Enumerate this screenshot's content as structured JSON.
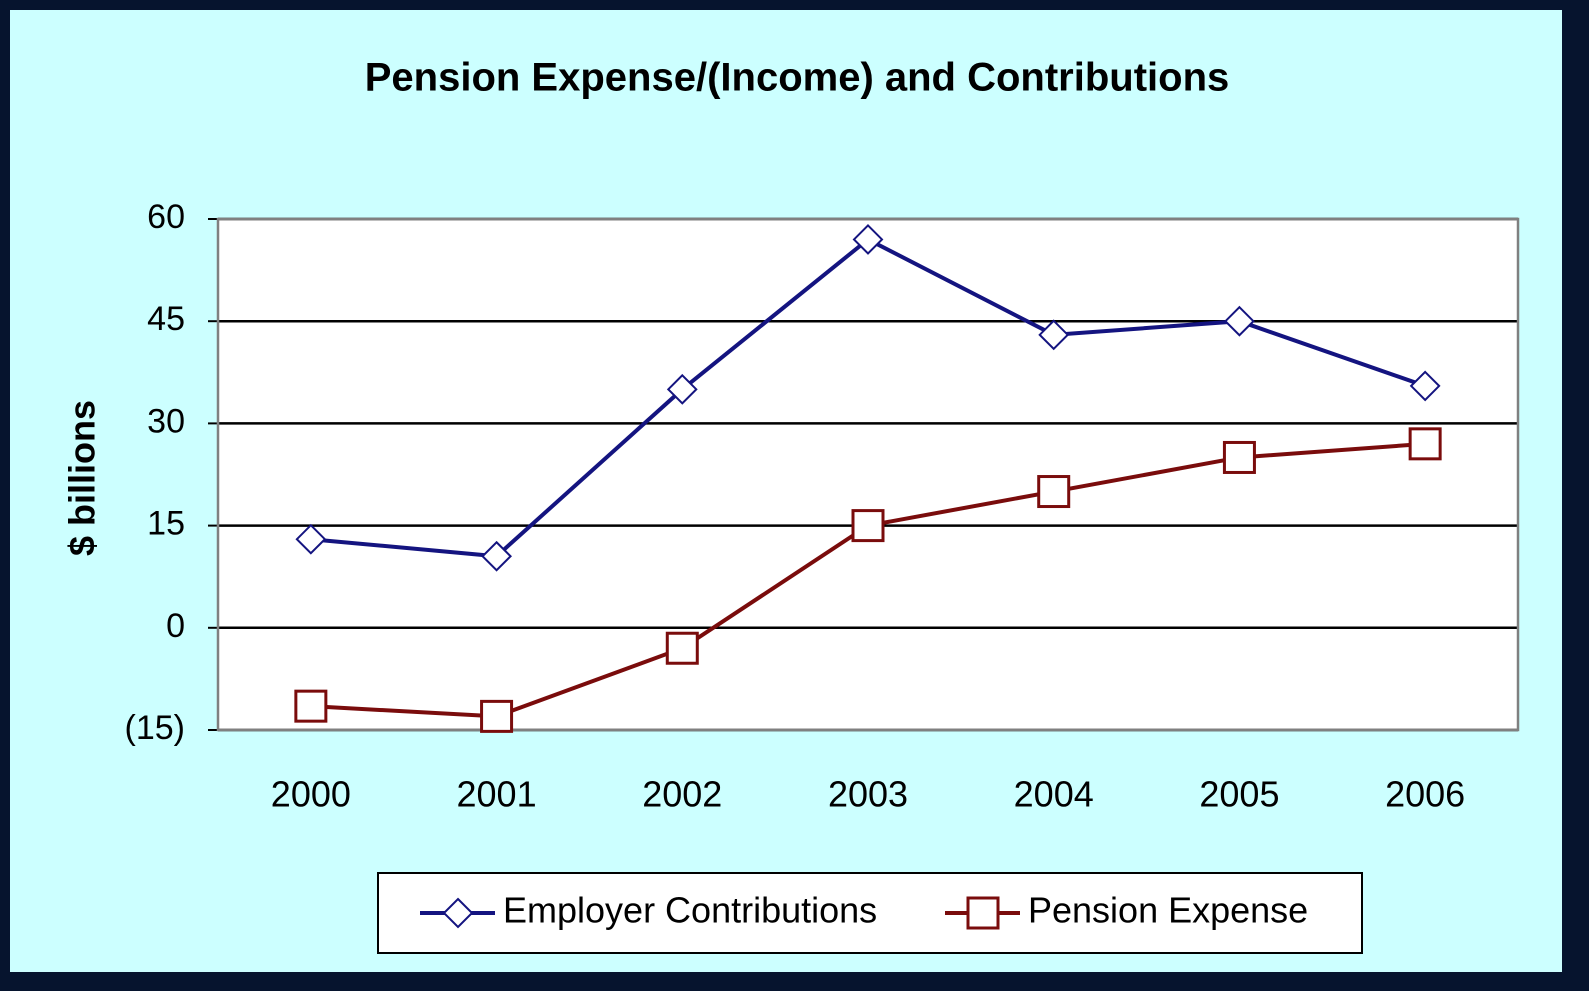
{
  "chart_data": {
    "type": "line",
    "title": "Pension Expense/(Income) and Contributions",
    "y_label": "$ billions",
    "categories": [
      "2000",
      "2001",
      "2002",
      "2003",
      "2004",
      "2005",
      "2006"
    ],
    "series": [
      {
        "name": "Employer Contributions",
        "color": "#141480",
        "marker": "diamond",
        "values": [
          13,
          10.5,
          35,
          57,
          43,
          45,
          35.5
        ]
      },
      {
        "name": "Pension Expense",
        "color": "#7a0c0c",
        "marker": "square",
        "values": [
          -11.5,
          -13,
          -3,
          15,
          20,
          25,
          27
        ]
      }
    ],
    "ylim": [
      -15,
      60
    ],
    "yticks": [
      {
        "value": -15,
        "label": "(15)"
      },
      0,
      15,
      30,
      45,
      60
    ],
    "negative_tick_label_color": "#e00000",
    "grid": true,
    "legend": "bottom"
  }
}
